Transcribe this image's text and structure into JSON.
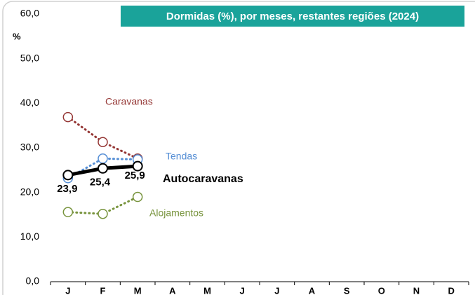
{
  "chart_data": {
    "type": "line",
    "title": "Dormidas (%), por meses, restantes regiões (2024)",
    "y_label": "%",
    "categories": [
      "J",
      "F",
      "M",
      "A",
      "M",
      "J",
      "J",
      "A",
      "S",
      "O",
      "N",
      "D"
    ],
    "ylim": [
      0,
      60
    ],
    "yticks": [
      {
        "value": 0,
        "label": "0,0"
      },
      {
        "value": 10,
        "label": "10,0"
      },
      {
        "value": 20,
        "label": "20,0"
      },
      {
        "value": 30,
        "label": "30,0"
      },
      {
        "value": 40,
        "label": "40,0"
      },
      {
        "value": 50,
        "label": "50,0"
      },
      {
        "value": 60,
        "label": "60,0"
      }
    ],
    "series": [
      {
        "name": "Caravanas",
        "color": "#953735",
        "style": "dotted",
        "values": [
          36.9,
          31.3,
          27.6,
          null,
          null,
          null,
          null,
          null,
          null,
          null,
          null,
          null
        ]
      },
      {
        "name": "Tendas",
        "color": "#558ed5",
        "style": "dotted",
        "values": [
          23.2,
          27.6,
          27.4,
          null,
          null,
          null,
          null,
          null,
          null,
          null,
          null,
          null
        ]
      },
      {
        "name": "Alojamentos",
        "color": "#77933c",
        "style": "dotted",
        "values": [
          15.6,
          15.2,
          19.0,
          null,
          null,
          null,
          null,
          null,
          null,
          null,
          null,
          null
        ]
      },
      {
        "name": "Autocaravanas",
        "color": "#000000",
        "style": "solid",
        "values": [
          23.9,
          25.4,
          25.9,
          null,
          null,
          null,
          null,
          null,
          null,
          null,
          null,
          null
        ],
        "value_labels": [
          "23,9",
          "25,4",
          "25,9",
          null,
          null,
          null,
          null,
          null,
          null,
          null,
          null,
          null
        ]
      }
    ]
  }
}
